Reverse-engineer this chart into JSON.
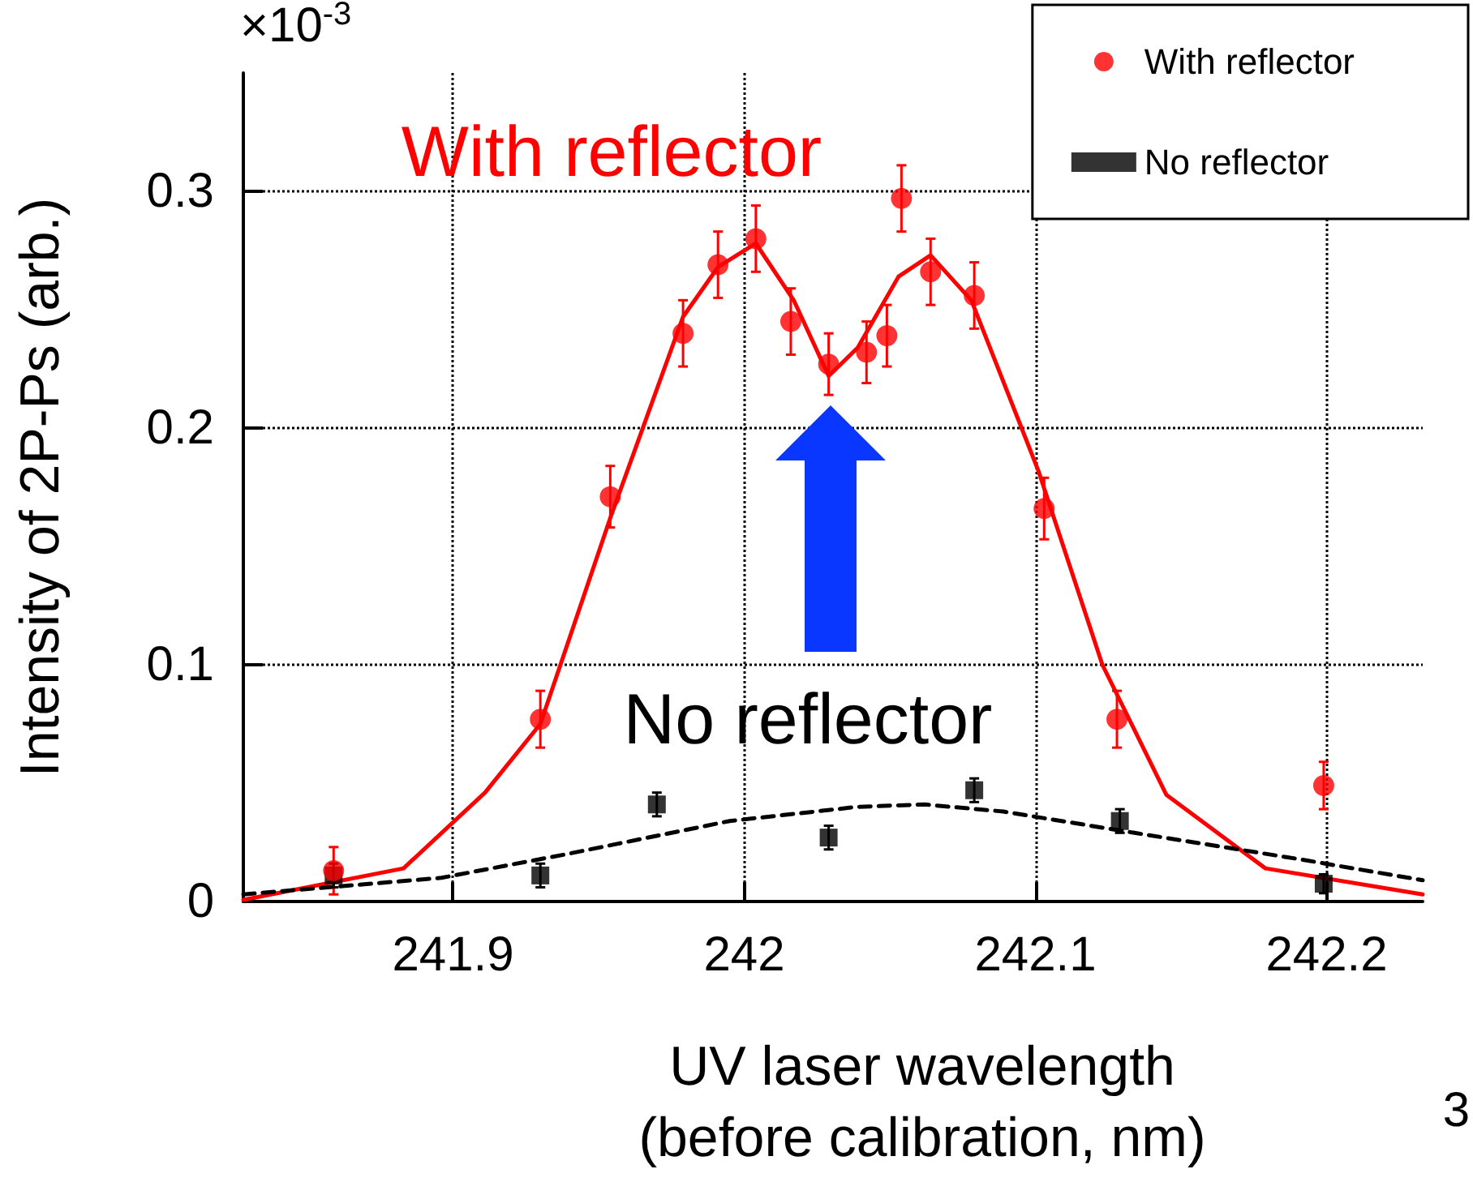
{
  "chart_data": {
    "type": "scatter",
    "xlabel": "UV laser wavelength\n(before calibration, nm)",
    "ylabel": "Intensity of 2P-Ps (arb.)",
    "xlim": [
      241.828,
      242.233
    ],
    "xticks": [
      241.9,
      242,
      242.1,
      242.2
    ],
    "ylim": [
      0,
      0.35
    ],
    "yticks": [
      0,
      0.1,
      0.2,
      0.3
    ],
    "grid": true,
    "legend": "top right",
    "series": [
      {
        "name": "With reflector",
        "color": "#ff0000",
        "marker": "circle",
        "x": [
          241.859,
          241.93,
          241.954,
          241.979,
          241.991,
          242.004,
          242.016,
          242.029,
          242.042,
          242.049,
          242.054,
          242.064,
          242.079,
          242.103,
          242.128,
          242.199
        ],
        "values": [
          0.013,
          0.077,
          0.171,
          0.24,
          0.269,
          0.28,
          0.245,
          0.227,
          0.232,
          0.239,
          0.297,
          0.266,
          0.256,
          0.166,
          0.077,
          0.049
        ],
        "errors": [
          0.01,
          0.012,
          0.013,
          0.014,
          0.014,
          0.014,
          0.014,
          0.013,
          0.013,
          0.013,
          0.014,
          0.014,
          0.014,
          0.013,
          0.012,
          0.01
        ]
      },
      {
        "name": "No reflector",
        "color": "#000000",
        "marker": "square",
        "x": [
          241.859,
          241.93,
          241.97,
          242.029,
          242.079,
          242.129,
          242.199
        ],
        "values": [
          0.011,
          0.011,
          0.041,
          0.027,
          0.047,
          0.034,
          0.0075
        ],
        "errors": [
          0.005,
          0.005,
          0.005,
          0.005,
          0.005,
          0.005,
          0.004
        ]
      },
      {
        "type": "line",
        "color": "#ff0000",
        "marker": "none",
        "line_style": "solid",
        "x": [
          241.828,
          241.883,
          241.911,
          241.93,
          241.954,
          241.979,
          241.991,
          242.004,
          242.017,
          242.029,
          242.039,
          242.053,
          242.064,
          242.078,
          242.101,
          242.123,
          242.145,
          242.179,
          242.233
        ],
        "values": [
          0.0007,
          0.014,
          0.046,
          0.075,
          0.162,
          0.247,
          0.268,
          0.278,
          0.254,
          0.222,
          0.234,
          0.264,
          0.273,
          0.254,
          0.182,
          0.1,
          0.045,
          0.014,
          0.003
        ]
      },
      {
        "type": "line",
        "color": "#000000",
        "marker": "none",
        "line_style": "dashed",
        "x": [
          241.828,
          241.896,
          241.939,
          241.995,
          242.039,
          242.062,
          242.089,
          242.134,
          242.19,
          242.233
        ],
        "values": [
          0.003,
          0.01,
          0.02,
          0.034,
          0.04,
          0.041,
          0.038,
          0.029,
          0.018,
          0.009
        ]
      }
    ],
    "annotations": [
      "With reflector",
      "No reflector",
      "×10$^{-3}$",
      "3"
    ]
  }
}
